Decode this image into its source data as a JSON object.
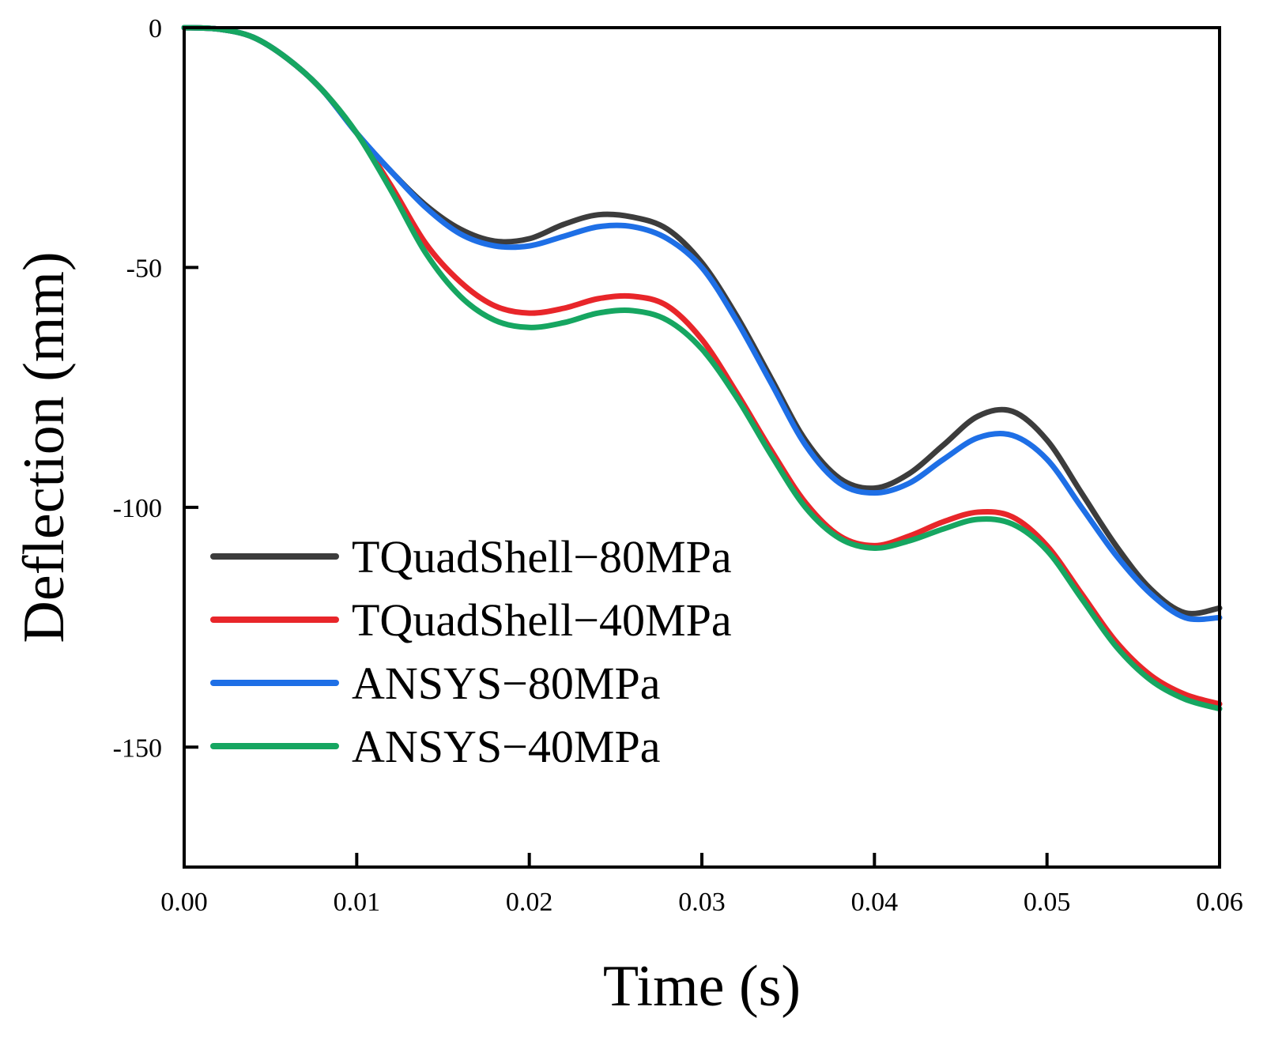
{
  "chart_data": {
    "type": "line",
    "title": "",
    "xlabel": "Time (s)",
    "ylabel": "Deflection (mm)",
    "xlim": [
      0,
      0.06
    ],
    "ylim": [
      -175,
      0
    ],
    "xticks": [
      0.0,
      0.01,
      0.02,
      0.03,
      0.04,
      0.05,
      0.06
    ],
    "xtick_labels": [
      "0.00",
      "0.01",
      "0.02",
      "0.03",
      "0.04",
      "0.05",
      "0.06"
    ],
    "yticks": [
      0,
      -50,
      -100,
      -150
    ],
    "ytick_labels": [
      "0",
      "-50",
      "-100",
      "-150"
    ],
    "grid": false,
    "legend_position": "bottom-left",
    "x": [
      0.0,
      0.002,
      0.004,
      0.006,
      0.008,
      0.01,
      0.012,
      0.014,
      0.016,
      0.018,
      0.02,
      0.022,
      0.024,
      0.026,
      0.028,
      0.03,
      0.032,
      0.034,
      0.036,
      0.038,
      0.04,
      0.042,
      0.044,
      0.046,
      0.048,
      0.05,
      0.052,
      0.054,
      0.056,
      0.058,
      0.06
    ],
    "series": [
      {
        "name": "TQuadShell−80MPa",
        "color": "#3c3c3c",
        "values": [
          0,
          -0.3,
          -2,
          -6.5,
          -13,
          -22,
          -30,
          -37,
          -42,
          -44.5,
          -44,
          -41,
          -39,
          -39.5,
          -42,
          -49,
          -60,
          -73,
          -86,
          -94,
          -96,
          -93,
          -87,
          -81,
          -80,
          -86,
          -97,
          -108,
          -117,
          -122,
          -121
        ]
      },
      {
        "name": "TQuadShell−40MPa",
        "color": "#e8262a",
        "values": [
          0,
          -0.3,
          -2,
          -6.5,
          -13,
          -22,
          -33,
          -45,
          -53,
          -58,
          -59.5,
          -58.5,
          -56.5,
          -56,
          -58,
          -65,
          -76,
          -88,
          -99,
          -106,
          -108,
          -106,
          -103,
          -101,
          -102,
          -108,
          -118,
          -128,
          -135,
          -139,
          -141
        ]
      },
      {
        "name": "ANSYS−80MPa",
        "color": "#1e6fe6",
        "values": [
          0,
          -0.3,
          -2,
          -6.5,
          -13,
          -22,
          -30,
          -37.5,
          -43,
          -45.5,
          -45.5,
          -43.5,
          -41.5,
          -41.5,
          -44,
          -50,
          -61,
          -74,
          -87,
          -95,
          -97,
          -95,
          -90,
          -85.5,
          -85,
          -90,
          -100,
          -110,
          -118,
          -123,
          -123
        ]
      },
      {
        "name": "ANSYS−40MPa",
        "color": "#16a661",
        "values": [
          0,
          -0.3,
          -2,
          -6.5,
          -13,
          -22,
          -34,
          -47,
          -56,
          -61,
          -62.5,
          -61.5,
          -59.5,
          -59,
          -61,
          -67,
          -77,
          -89,
          -100,
          -106.5,
          -108.5,
          -107,
          -104.5,
          -102.5,
          -103.5,
          -109,
          -119,
          -129,
          -136,
          -140,
          -142
        ]
      }
    ]
  }
}
